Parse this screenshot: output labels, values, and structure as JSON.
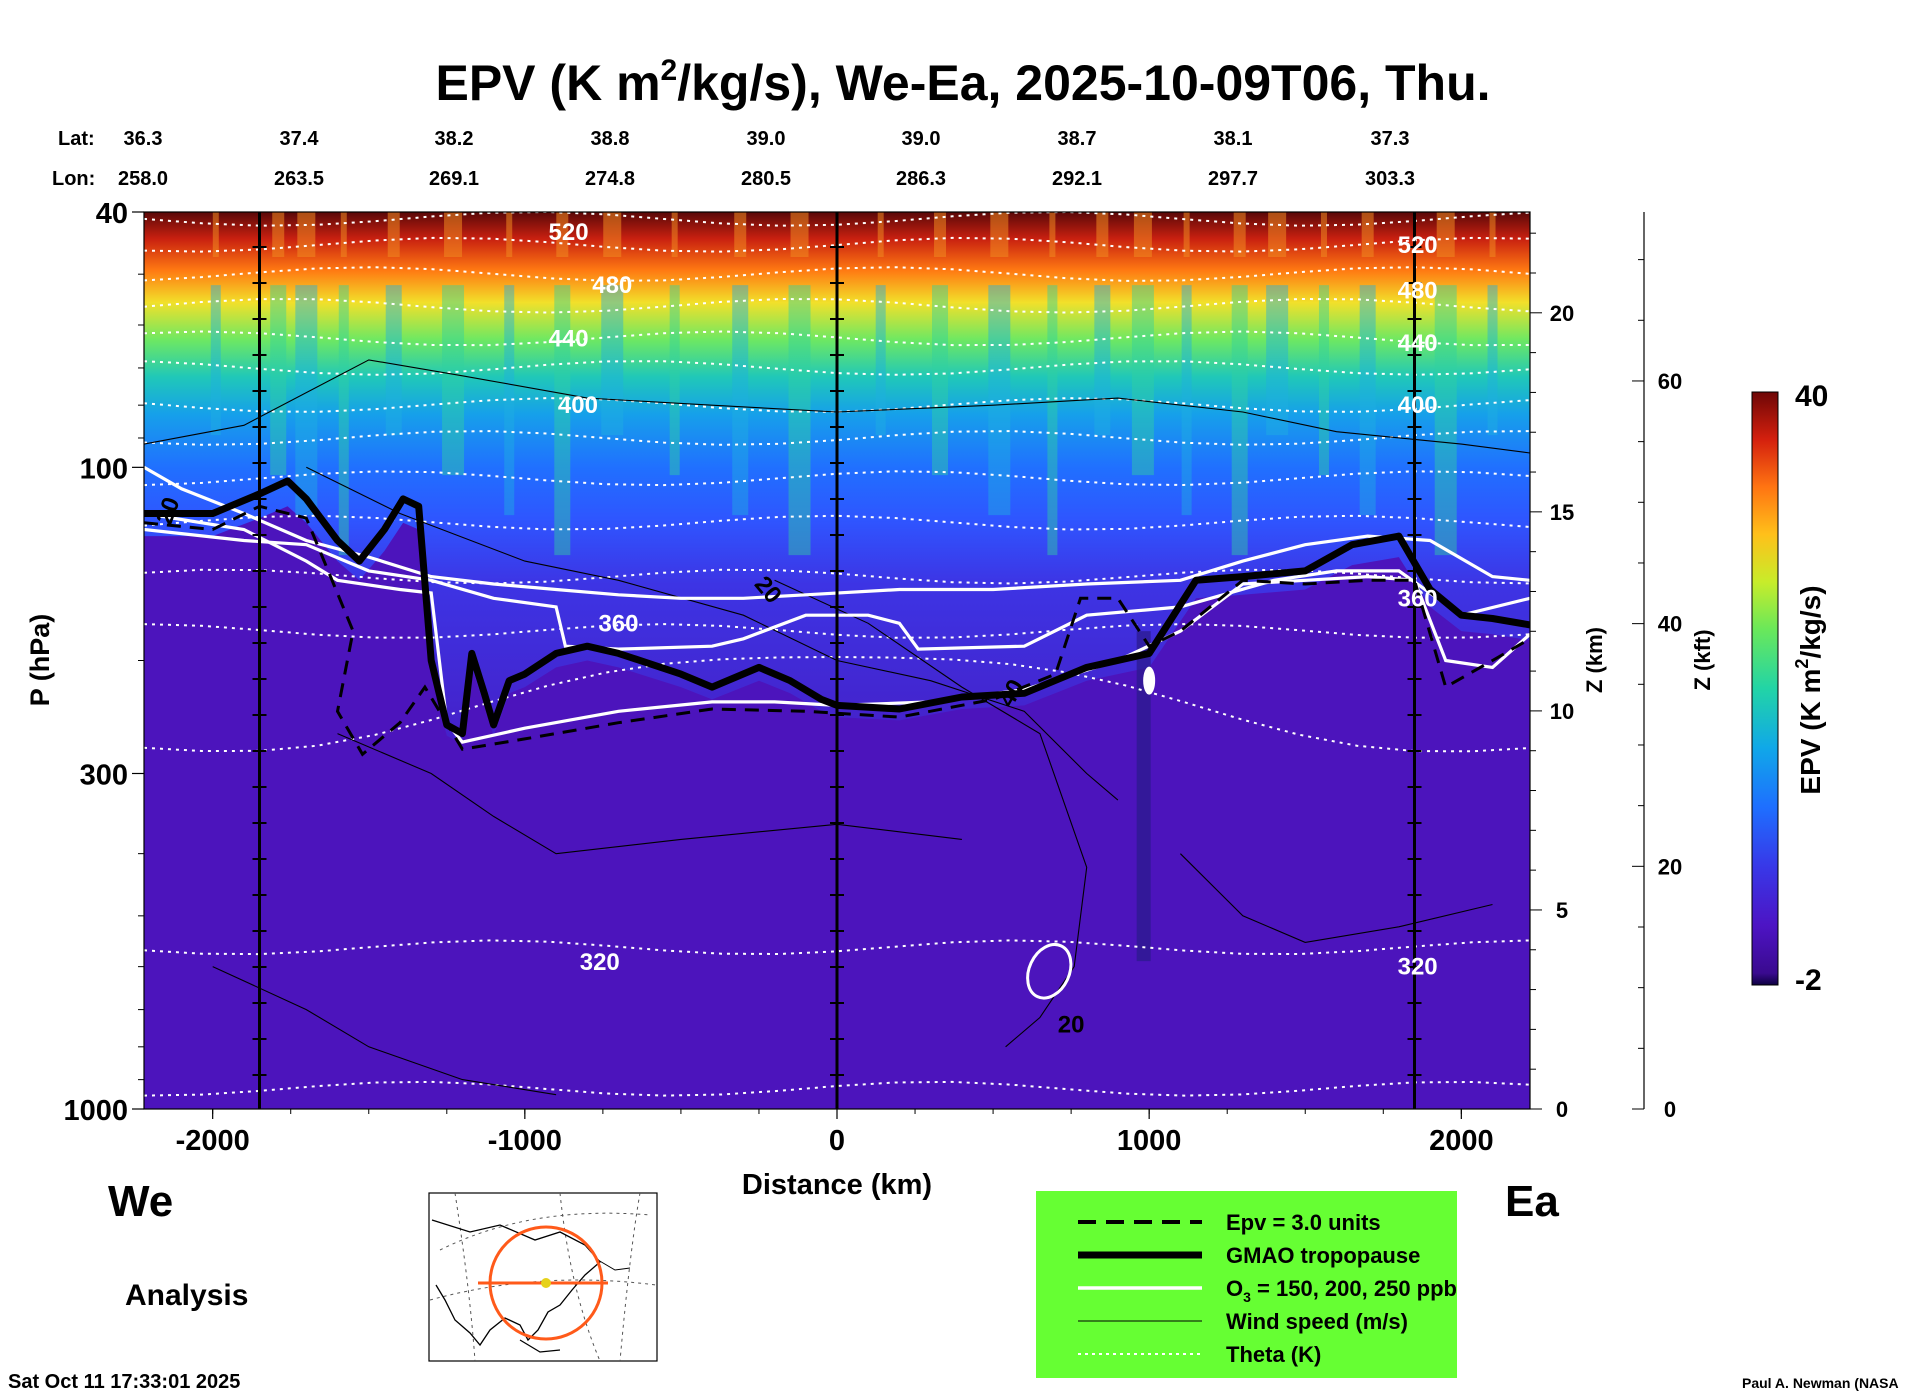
{
  "chart_data": {
    "type": "heatmap",
    "title_main": "EPV (K m",
    "title_sup": "2",
    "title_rest": "/kg/s), We-Ea, 2025-10-09T06, Thu.",
    "lat_label": "Lat:",
    "lon_label": "Lon:",
    "lat_values": [
      "36.3",
      "37.4",
      "38.2",
      "38.8",
      "39.0",
      "39.0",
      "38.7",
      "38.1",
      "37.3"
    ],
    "lon_values": [
      "258.0",
      "263.5",
      "269.1",
      "274.8",
      "280.5",
      "286.3",
      "292.1",
      "297.7",
      "303.3"
    ],
    "xlabel": "Distance (km)",
    "xlim": [
      -2220,
      2220
    ],
    "x_ticks": [
      -2000,
      -1000,
      0,
      1000,
      2000
    ],
    "x_tick_labels": [
      "-2000",
      "-1000",
      "0",
      "1000",
      "2000"
    ],
    "ylabel": "P (hPa)",
    "y_scale": "log",
    "ylim": [
      1000,
      40
    ],
    "y_ticks": [
      40,
      100,
      300,
      1000
    ],
    "y_tick_labels": [
      "40",
      "100",
      "300",
      "1000"
    ],
    "z_km_label": "Z (km)",
    "z_km_ticks": [
      0,
      5,
      10,
      15,
      20
    ],
    "z_kft_label": "Z (kft)",
    "z_kft_ticks": [
      0,
      20,
      40,
      60
    ],
    "colorbar": {
      "label_main": "EPV (K m",
      "label_sup": "2",
      "label_rest": "/kg/s)",
      "max_label": "40",
      "min_label": "-2",
      "min": -2,
      "max": 40
    },
    "vertical_markers_km": [
      -1850,
      0,
      1850
    ],
    "theta_labels": [
      {
        "text": "520",
        "level": 520
      },
      {
        "text": "480",
        "level": 480
      },
      {
        "text": "440",
        "level": 440
      },
      {
        "text": "400",
        "level": 400
      },
      {
        "text": "360",
        "level": 360
      },
      {
        "text": "320",
        "level": 320
      }
    ],
    "wind_labels": [
      "20",
      "20",
      "40",
      "20"
    ],
    "tropopause_hpa": [
      [
        -2220,
        118
      ],
      [
        -2000,
        118
      ],
      [
        -1850,
        110
      ],
      [
        -1760,
        105
      ],
      [
        -1700,
        112
      ],
      [
        -1600,
        130
      ],
      [
        -1530,
        140
      ],
      [
        -1450,
        125
      ],
      [
        -1390,
        112
      ],
      [
        -1340,
        115
      ],
      [
        -1300,
        200
      ],
      [
        -1250,
        252
      ],
      [
        -1200,
        260
      ],
      [
        -1170,
        195
      ],
      [
        -1130,
        225
      ],
      [
        -1100,
        252
      ],
      [
        -1050,
        215
      ],
      [
        -1000,
        210
      ],
      [
        -900,
        195
      ],
      [
        -800,
        190
      ],
      [
        -700,
        195
      ],
      [
        -500,
        210
      ],
      [
        -400,
        220
      ],
      [
        -250,
        205
      ],
      [
        -150,
        215
      ],
      [
        -50,
        230
      ],
      [
        0,
        235
      ],
      [
        200,
        238
      ],
      [
        400,
        228
      ],
      [
        600,
        225
      ],
      [
        800,
        205
      ],
      [
        1000,
        195
      ],
      [
        1150,
        150
      ],
      [
        1300,
        148
      ],
      [
        1500,
        145
      ],
      [
        1650,
        132
      ],
      [
        1800,
        128
      ],
      [
        1900,
        155
      ],
      [
        2000,
        170
      ],
      [
        2100,
        172
      ],
      [
        2220,
        176
      ]
    ],
    "legend": [
      {
        "label": "Epv = 3.0 units",
        "style": "dashed",
        "color": "#000000"
      },
      {
        "label": "GMAO tropopause",
        "style": "thick",
        "color": "#000000"
      },
      {
        "label_main": "O",
        "label_sub": "3",
        "label_rest": " = 150, 200, 250 ppb",
        "style": "solid",
        "color": "#ffffff"
      },
      {
        "label": "Wind speed (m/s)",
        "style": "thin",
        "color": "#000000"
      },
      {
        "label": "Theta (K)",
        "style": "dotted",
        "color": "#ffffff"
      }
    ],
    "legend_bg": "#66ff33",
    "west_label": "We",
    "east_label": "Ea",
    "analysis_label": "Analysis",
    "timestamp": "Sat Oct 11 17:33:01 2025",
    "credit": "Paul A. Newman (NASA"
  }
}
